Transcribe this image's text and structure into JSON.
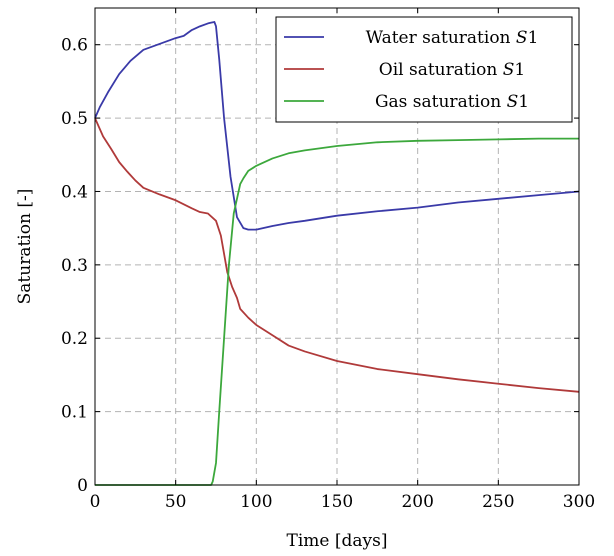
{
  "chart_data": {
    "type": "line",
    "title": "",
    "xlabel": "Time [days]",
    "ylabel": "Saturation [-]",
    "xlim": [
      0,
      300
    ],
    "ylim": [
      0,
      0.65
    ],
    "xticks": [
      0,
      50,
      100,
      150,
      200,
      250,
      300
    ],
    "xtick_labels": [
      "0",
      "50",
      "100",
      "150",
      "200",
      "250",
      "300"
    ],
    "yticks": [
      0,
      0.1,
      0.2,
      0.3,
      0.4,
      0.5,
      0.6
    ],
    "ytick_labels": [
      "0",
      "0.1",
      "0.2",
      "0.3",
      "0.4",
      "0.5",
      "0.6"
    ],
    "grid": true,
    "legend_position": "top-right",
    "series": [
      {
        "name": "Water saturation S1",
        "name_parts": {
          "text": "Water saturation ",
          "math": "S",
          "num": "1"
        },
        "color": "#3a3aa8",
        "x": [
          0,
          3,
          8,
          15,
          22,
          30,
          40,
          50,
          55,
          60,
          65,
          70,
          72,
          74,
          75,
          77,
          80,
          84,
          88,
          92,
          95,
          100,
          110,
          120,
          130,
          150,
          175,
          200,
          225,
          250,
          275,
          300
        ],
        "y": [
          0.5,
          0.515,
          0.535,
          0.56,
          0.578,
          0.593,
          0.601,
          0.609,
          0.612,
          0.62,
          0.625,
          0.629,
          0.63,
          0.631,
          0.625,
          0.58,
          0.5,
          0.42,
          0.365,
          0.35,
          0.348,
          0.348,
          0.353,
          0.357,
          0.36,
          0.367,
          0.373,
          0.378,
          0.385,
          0.39,
          0.395,
          0.4
        ]
      },
      {
        "name": "Oil saturation S1",
        "name_parts": {
          "text": "Oil saturation ",
          "math": "S",
          "num": "1"
        },
        "color": "#b03a3a",
        "x": [
          0,
          5,
          10,
          15,
          20,
          25,
          30,
          40,
          50,
          60,
          65,
          70,
          75,
          78,
          80,
          82,
          85,
          88,
          90,
          95,
          100,
          110,
          120,
          130,
          150,
          175,
          200,
          225,
          250,
          275,
          300
        ],
        "y": [
          0.5,
          0.475,
          0.458,
          0.44,
          0.427,
          0.415,
          0.405,
          0.396,
          0.388,
          0.377,
          0.372,
          0.37,
          0.36,
          0.34,
          0.315,
          0.29,
          0.27,
          0.255,
          0.24,
          0.228,
          0.218,
          0.204,
          0.19,
          0.182,
          0.169,
          0.158,
          0.151,
          0.144,
          0.138,
          0.132,
          0.127
        ]
      },
      {
        "name": "Gas saturation S1",
        "name_parts": {
          "text": "Gas saturation ",
          "math": "S",
          "num": "1"
        },
        "color": "#3ca83c",
        "x": [
          0,
          50,
          72,
          73,
          75,
          77,
          80,
          83,
          86,
          88,
          90,
          92,
          95,
          100,
          110,
          120,
          130,
          150,
          175,
          200,
          225,
          250,
          275,
          300
        ],
        "y": [
          0,
          0,
          0,
          0.005,
          0.03,
          0.1,
          0.2,
          0.3,
          0.37,
          0.39,
          0.41,
          0.418,
          0.428,
          0.435,
          0.445,
          0.452,
          0.456,
          0.462,
          0.467,
          0.469,
          0.47,
          0.471,
          0.472,
          0.472
        ]
      }
    ]
  }
}
